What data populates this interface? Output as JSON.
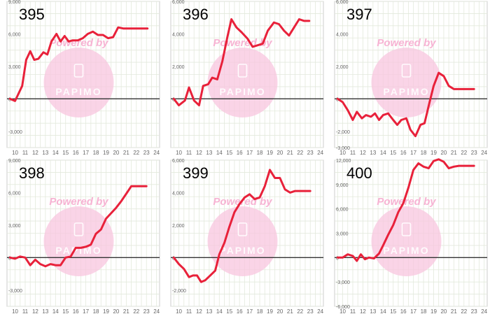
{
  "watermark": {
    "text": "Powered by",
    "brand": "PAPIMO"
  },
  "colors": {
    "line": "#e8213a",
    "grid": "#e3e9dc",
    "axis_zero": "#333333",
    "tick_label": "#666666",
    "panel_border": "#cccccc",
    "watermark_circle": "#f8c6df",
    "watermark_text": "#f7b3d3",
    "panel_id": "#000000"
  },
  "chart_data": [
    {
      "type": "line",
      "id": "395",
      "title": "395",
      "x_ticks": [
        10,
        11,
        12,
        13,
        14,
        15,
        16,
        17,
        18,
        19,
        20,
        21,
        22,
        23,
        24
      ],
      "y_ticks": [
        -3000,
        0,
        3000,
        6000,
        9000
      ],
      "xlim": [
        9.2,
        24.3
      ],
      "ylim": [
        -4500,
        9000
      ],
      "grid": true,
      "series": [
        {
          "x": [
            9.5,
            10,
            10.7,
            11.1,
            11.5,
            11.9,
            12.3,
            12.8,
            13.2,
            13.6,
            14.1,
            14.5,
            14.9,
            15.3,
            15.7,
            16.2,
            16.7,
            17.2,
            17.7,
            18.2,
            18.7,
            19.2,
            19.7,
            20.2,
            20.7,
            21.2,
            21.6,
            22.1,
            22.6,
            23.1
          ],
          "values": [
            0,
            -200,
            1200,
            3600,
            4400,
            3600,
            3700,
            4300,
            4100,
            5300,
            6000,
            5300,
            5800,
            5300,
            5400,
            5400,
            5600,
            6000,
            6200,
            5900,
            5900,
            5600,
            5700,
            6600,
            6500,
            6500,
            6500,
            6500,
            6500,
            6500
          ]
        }
      ]
    },
    {
      "type": "line",
      "id": "396",
      "title": "396",
      "x_ticks": [
        10,
        11,
        12,
        13,
        14,
        15,
        16,
        17,
        18,
        19,
        20,
        21,
        22,
        23,
        24
      ],
      "y_ticks": [
        0,
        2000,
        4000,
        6000
      ],
      "xlim": [
        9.2,
        24.3
      ],
      "ylim": [
        -3000,
        6000
      ],
      "grid": true,
      "series": [
        {
          "x": [
            9.5,
            10,
            10.6,
            11,
            11.5,
            12,
            12.4,
            12.9,
            13.3,
            13.8,
            14.3,
            14.8,
            15.2,
            15.7,
            16.2,
            16.8,
            17.3,
            17.8,
            18.3,
            18.8,
            19.4,
            19.9,
            20.4,
            20.9,
            21.4,
            21.9,
            22.4,
            22.9
          ],
          "values": [
            0,
            -400,
            -100,
            700,
            -100,
            -400,
            800,
            900,
            1300,
            1200,
            2300,
            3800,
            4900,
            4400,
            4100,
            3700,
            3200,
            3300,
            3400,
            4200,
            4700,
            4600,
            4200,
            3900,
            4400,
            4900,
            4800,
            4800
          ]
        }
      ]
    },
    {
      "type": "line",
      "id": "397",
      "title": "397",
      "x_ticks": [
        10,
        11,
        12,
        13,
        14,
        15,
        16,
        17,
        18,
        19,
        20,
        21,
        22,
        23,
        24
      ],
      "y_ticks": [
        -3000,
        -2000,
        0,
        2000,
        4000,
        6000
      ],
      "xlim": [
        9.2,
        24.3
      ],
      "ylim": [
        -3000,
        6000
      ],
      "grid": true,
      "series": [
        {
          "x": [
            9.5,
            10,
            10.5,
            11,
            11.4,
            11.9,
            12.3,
            12.8,
            13.2,
            13.6,
            14,
            14.5,
            15,
            15.4,
            15.8,
            16.3,
            16.7,
            17.2,
            17.7,
            18.1,
            18.6,
            19,
            19.5,
            20,
            20.5,
            21,
            21.5,
            22,
            22.5,
            23
          ],
          "values": [
            0,
            -200,
            -700,
            -1300,
            -800,
            -1200,
            -1000,
            -1100,
            -900,
            -1300,
            -1000,
            -900,
            -1300,
            -1600,
            -1300,
            -1200,
            -1900,
            -2300,
            -1600,
            -1500,
            -200,
            800,
            1600,
            1400,
            800,
            600,
            600,
            600,
            600,
            600
          ]
        }
      ]
    },
    {
      "type": "line",
      "id": "398",
      "title": "398",
      "x_ticks": [
        10,
        11,
        12,
        13,
        14,
        15,
        16,
        17,
        18,
        19,
        20,
        21,
        22,
        23,
        24
      ],
      "y_ticks": [
        -3000,
        0,
        3000,
        6000,
        9000
      ],
      "xlim": [
        9.2,
        24.3
      ],
      "ylim": [
        -4500,
        9000
      ],
      "grid": true,
      "series": [
        {
          "x": [
            9.5,
            10,
            10.5,
            11,
            11.5,
            12,
            12.5,
            13,
            13.5,
            14,
            14.5,
            15,
            15.5,
            16,
            16.5,
            17,
            17.5,
            18,
            18.5,
            19,
            19.5,
            20,
            20.5,
            21,
            21.5,
            22,
            22.5,
            23
          ],
          "values": [
            0,
            -100,
            100,
            0,
            -700,
            -200,
            -600,
            -800,
            -600,
            -700,
            -700,
            0,
            100,
            900,
            900,
            1000,
            1200,
            2200,
            2600,
            3600,
            4100,
            4600,
            5200,
            5900,
            6600,
            6600,
            6600,
            6600
          ]
        }
      ]
    },
    {
      "type": "line",
      "id": "399",
      "title": "399",
      "x_ticks": [
        10,
        11,
        12,
        13,
        14,
        15,
        16,
        17,
        18,
        19,
        20,
        21,
        22,
        23,
        24
      ],
      "y_ticks": [
        -2000,
        0,
        2000,
        4000,
        6000
      ],
      "xlim": [
        9.2,
        24.3
      ],
      "ylim": [
        -3000,
        6000
      ],
      "grid": true,
      "series": [
        {
          "x": [
            9.5,
            10,
            10.5,
            11,
            11.4,
            11.8,
            12.2,
            12.6,
            13.1,
            13.6,
            14,
            14.5,
            15,
            15.5,
            16,
            16.5,
            17,
            17.5,
            18,
            18.5,
            19,
            19.5,
            20,
            20.5,
            21,
            21.5,
            22,
            22.5,
            23
          ],
          "values": [
            0,
            -400,
            -700,
            -1200,
            -1100,
            -1100,
            -1500,
            -1400,
            -1100,
            -800,
            200,
            900,
            1900,
            2800,
            3300,
            3700,
            3900,
            3600,
            3700,
            4400,
            5400,
            4900,
            4900,
            4200,
            4000,
            4100,
            4100,
            4100,
            4100
          ]
        }
      ]
    },
    {
      "type": "line",
      "id": "400",
      "title": "400",
      "x_ticks": [
        10,
        11,
        12,
        13,
        14,
        15,
        16,
        17,
        18,
        19,
        20,
        21,
        22,
        23,
        24
      ],
      "y_ticks": [
        -6000,
        -3000,
        0,
        3000,
        6000,
        9000,
        12000
      ],
      "xlim": [
        9.2,
        24.3
      ],
      "ylim": [
        -6000,
        12000
      ],
      "grid": true,
      "series": [
        {
          "x": [
            9.5,
            10,
            10.5,
            11,
            11.4,
            11.8,
            12.2,
            12.6,
            13.1,
            13.6,
            14,
            14.5,
            15,
            15.5,
            16,
            16.5,
            17,
            17.5,
            18,
            18.5,
            19,
            19.5,
            20,
            20.5,
            21,
            21.5,
            22,
            22.5,
            23
          ],
          "values": [
            0,
            0,
            400,
            200,
            -400,
            400,
            -200,
            0,
            -100,
            500,
            1500,
            2800,
            4000,
            5600,
            6700,
            8600,
            10800,
            11600,
            11200,
            11000,
            11900,
            12100,
            11800,
            11000,
            11200,
            11300,
            11300,
            11300,
            11300
          ]
        }
      ]
    }
  ]
}
